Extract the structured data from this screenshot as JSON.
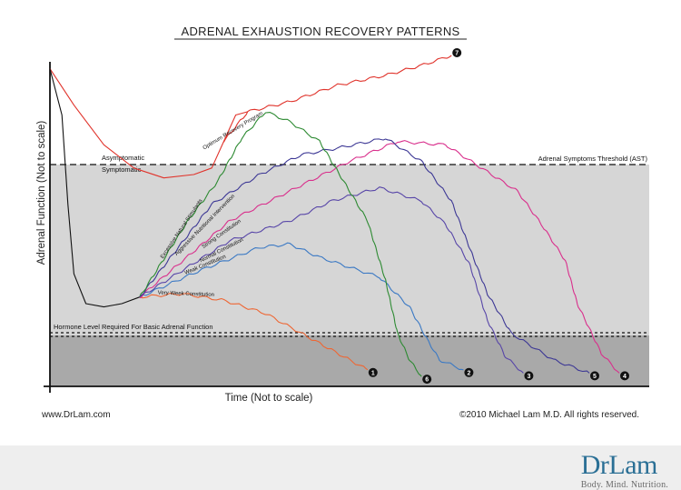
{
  "chart_data": {
    "type": "line",
    "title": "ADRENAL EXHAUSTION RECOVERY PATTERNS",
    "xlabel": "Time (Not to scale)",
    "ylabel": "Adrenal Function (Not to scale)",
    "x_range": [
      0,
      100
    ],
    "y_range": [
      0,
      100
    ],
    "thresholds": [
      {
        "label": "Adrenal Symptoms Threshold (AST)",
        "y": 72
      },
      {
        "label": "Hormone Level Required For Basic Adrenal Function",
        "y": 17
      }
    ],
    "zone_labels": {
      "above": "Asymptomatic",
      "below": "Symptomatic"
    },
    "initial_decline": [
      [
        0,
        96
      ],
      [
        4,
        85
      ],
      [
        9,
        73
      ],
      [
        14,
        66
      ],
      [
        19,
        63
      ],
      [
        24,
        64
      ],
      [
        27,
        66
      ],
      [
        29,
        74
      ],
      [
        31,
        82
      ],
      [
        33,
        83
      ]
    ],
    "crash_curve": [
      [
        0,
        96
      ],
      [
        2,
        82
      ],
      [
        3,
        55
      ],
      [
        4,
        34
      ],
      [
        6,
        25
      ],
      [
        9,
        24
      ],
      [
        12,
        25
      ],
      [
        15,
        27
      ]
    ],
    "series": [
      {
        "marker": "1",
        "label": "Very Week Constitution",
        "color": "#ee6633",
        "points": [
          [
            15,
            27
          ],
          [
            22,
            28
          ],
          [
            29,
            26
          ],
          [
            36,
            22
          ],
          [
            41,
            17
          ],
          [
            45,
            13
          ],
          [
            49,
            9
          ],
          [
            53,
            5
          ]
        ]
      },
      {
        "marker": "2",
        "label": "Weak Constitution",
        "color": "#3b79c4",
        "points": [
          [
            15,
            27
          ],
          [
            25,
            35
          ],
          [
            35,
            42
          ],
          [
            40,
            43
          ],
          [
            45,
            39
          ],
          [
            50,
            36
          ],
          [
            55,
            33
          ],
          [
            60,
            24
          ],
          [
            63,
            14
          ],
          [
            65,
            8
          ],
          [
            69,
            5
          ]
        ]
      },
      {
        "marker": "3",
        "label": "Normal Constitution",
        "color": "#5846a8",
        "points": [
          [
            15,
            27
          ],
          [
            30,
            44
          ],
          [
            40,
            50
          ],
          [
            47,
            56
          ],
          [
            55,
            60
          ],
          [
            62,
            56
          ],
          [
            66,
            49
          ],
          [
            70,
            37
          ],
          [
            73,
            20
          ],
          [
            76,
            9
          ],
          [
            79,
            4
          ]
        ]
      },
      {
        "marker": "4",
        "label": "Strong Constitution",
        "color": "#d92f8c",
        "points": [
          [
            15,
            27
          ],
          [
            30,
            50
          ],
          [
            40,
            59
          ],
          [
            50,
            68
          ],
          [
            58,
            74
          ],
          [
            66,
            73
          ],
          [
            72,
            66
          ],
          [
            78,
            59
          ],
          [
            82,
            49
          ],
          [
            86,
            38
          ],
          [
            88,
            25
          ],
          [
            92,
            10
          ],
          [
            95,
            4
          ]
        ]
      },
      {
        "marker": "5",
        "label": "Aggressive Nutritional Intervention",
        "color": "#3d3895",
        "points": [
          [
            15,
            27
          ],
          [
            27,
            55
          ],
          [
            35,
            64
          ],
          [
            42,
            70
          ],
          [
            48,
            72
          ],
          [
            56,
            75
          ],
          [
            62,
            68
          ],
          [
            67,
            56
          ],
          [
            70,
            42
          ],
          [
            73,
            28
          ],
          [
            77,
            16
          ],
          [
            84,
            8
          ],
          [
            90,
            4
          ]
        ]
      },
      {
        "marker": "6",
        "label": "Excessive Natural Stimulants",
        "color": "#2d8a32",
        "points": [
          [
            15,
            27
          ],
          [
            23,
            50
          ],
          [
            28,
            62
          ],
          [
            32,
            75
          ],
          [
            36,
            83
          ],
          [
            40,
            80
          ],
          [
            45,
            74
          ],
          [
            49,
            62
          ],
          [
            53,
            50
          ],
          [
            56,
            32
          ],
          [
            58,
            16
          ],
          [
            60,
            8
          ],
          [
            62,
            3
          ]
        ]
      },
      {
        "marker": "7",
        "label": "Optimum Recovery Program",
        "color": "#e0332b",
        "points": [
          [
            29,
            74
          ],
          [
            33,
            83
          ],
          [
            40,
            86
          ],
          [
            48,
            91
          ],
          [
            56,
            94
          ],
          [
            62,
            97
          ],
          [
            67,
            100
          ]
        ]
      }
    ]
  },
  "footer": {
    "website": "www.DrLam.com",
    "copyright": "©2010 Michael Lam M.D. All rights reserved.",
    "logo_word": "DrLam",
    "logo_tagline": "Body. Mind. Nutrition."
  }
}
